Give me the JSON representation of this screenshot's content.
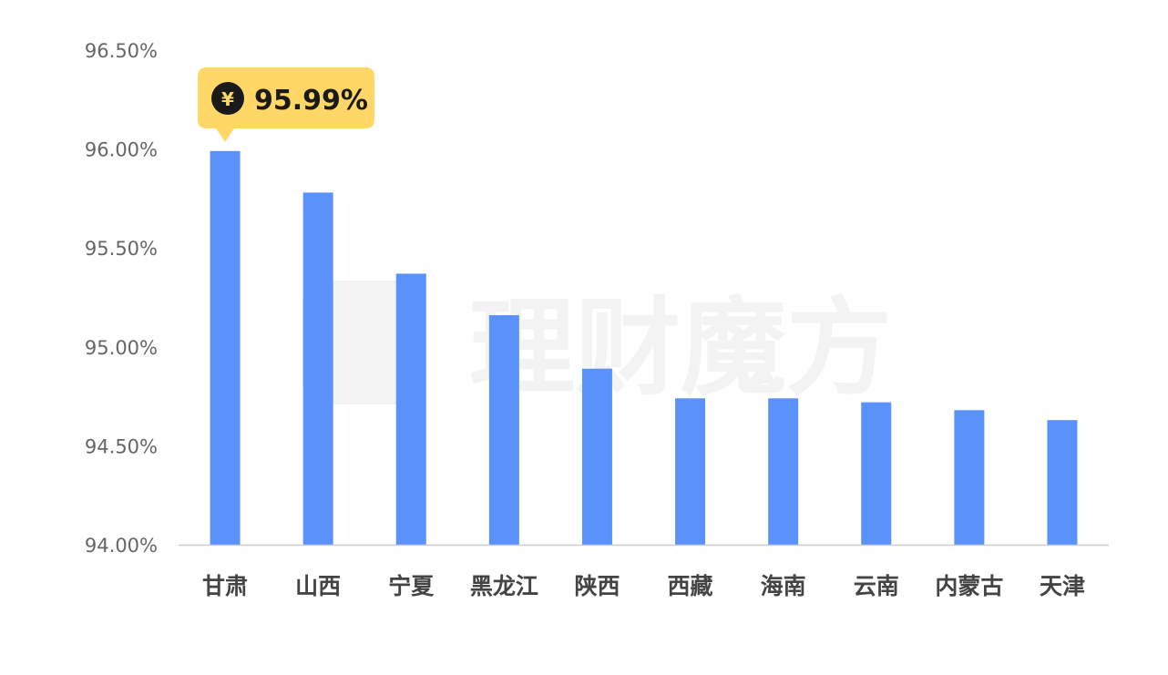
{
  "watermark": {
    "text": "理财魔方"
  },
  "colors": {
    "bar": "#5b91fb",
    "tooltip": "#ffd766",
    "axis": "#cccccc"
  },
  "tooltip": {
    "icon": "yen-coin-icon",
    "symbol": "¥",
    "value": "95.99%"
  },
  "chart_data": {
    "type": "bar",
    "title": "",
    "xlabel": "",
    "ylabel": "",
    "ylim": [
      94.0,
      96.5
    ],
    "yticks": [
      94.0,
      94.5,
      95.0,
      95.5,
      96.0,
      96.5
    ],
    "ytick_labels": [
      "94.00%",
      "94.50%",
      "95.00%",
      "95.50%",
      "96.00%",
      "96.50%"
    ],
    "categories": [
      "甘肃",
      "山西",
      "宁夏",
      "黑龙江",
      "陕西",
      "西藏",
      "海南",
      "云南",
      "内蒙古",
      "天津"
    ],
    "values": [
      95.99,
      95.78,
      95.37,
      95.16,
      94.89,
      94.74,
      94.74,
      94.72,
      94.68,
      94.63
    ],
    "grid": false,
    "legend": "none"
  }
}
